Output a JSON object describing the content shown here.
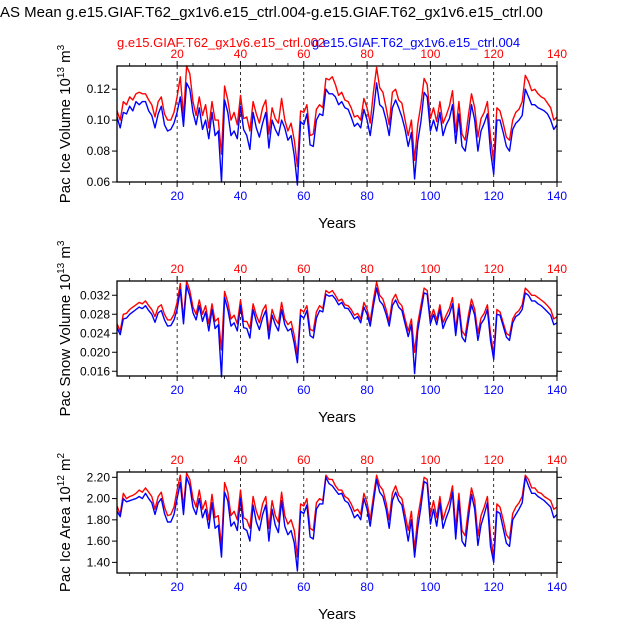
{
  "page_title": "AS Mean g.e15.GIAF.T62_gx1v6.e15_ctrl.004-g.e15.GIAF.T62_gx1v6.e15_ctrl.00",
  "legend": [
    {
      "label": "g.e15.GIAF.T62_gx1v6.e15_ctrl.002",
      "color": "#ff0000"
    },
    {
      "label": "g.e15.GIAF.T62_gx1v6.e15_ctrl.004",
      "color": "#0000ff"
    }
  ],
  "chart_data": [
    {
      "type": "line",
      "ylabel": "Pac Ice Volume 10",
      "ylabel_sup": "13",
      "ylabel_unit": "m",
      "ylabel_unit_sup": "3",
      "xlabel": "Years",
      "xlim": [
        1,
        140
      ],
      "ylim": [
        0.06,
        0.135
      ],
      "yticks": [
        0.06,
        0.08,
        0.1,
        0.12
      ],
      "ytick_labels": [
        "0.06",
        "0.08",
        "0.10",
        "0.12"
      ],
      "xticks_top": [
        "20",
        "40",
        "60",
        "80",
        "100",
        "120",
        "140"
      ],
      "xticks_bottom": [
        "20",
        "40",
        "60",
        "80",
        "100",
        "120",
        "140"
      ],
      "series": [
        {
          "name": "g.e15.GIAF.T62_gx1v6.e15_ctrl.002",
          "color": "#ff0000",
          "values": [
            0.106,
            0.1,
            0.112,
            0.11,
            0.115,
            0.113,
            0.117,
            0.118,
            0.117,
            0.117,
            0.113,
            0.11,
            0.102,
            0.112,
            0.115,
            0.104,
            0.1,
            0.1,
            0.105,
            0.115,
            0.128,
            0.102,
            0.135,
            0.13,
            0.112,
            0.103,
            0.115,
            0.103,
            0.11,
            0.095,
            0.112,
            0.1,
            0.1,
            0.078,
            0.122,
            0.113,
            0.1,
            0.105,
            0.097,
            0.116,
            0.101,
            0.102,
            0.093,
            0.112,
            0.104,
            0.098,
            0.108,
            0.113,
            0.091,
            0.108,
            0.101,
            0.098,
            0.114,
            0.1,
            0.093,
            0.098,
            0.087,
            0.07,
            0.106,
            0.105,
            0.11,
            0.09,
            0.091,
            0.107,
            0.11,
            0.108,
            0.127,
            0.126,
            0.128,
            0.123,
            0.116,
            0.118,
            0.113,
            0.112,
            0.108,
            0.102,
            0.103,
            0.1,
            0.114,
            0.108,
            0.098,
            0.118,
            0.134,
            0.121,
            0.118,
            0.108,
            0.097,
            0.118,
            0.12,
            0.113,
            0.111,
            0.1,
            0.09,
            0.1,
            0.074,
            0.097,
            0.11,
            0.127,
            0.123,
            0.101,
            0.108,
            0.099,
            0.112,
            0.098,
            0.103,
            0.109,
            0.119,
            0.092,
            0.112,
            0.091,
            0.087,
            0.103,
            0.117,
            0.108,
            0.089,
            0.101,
            0.105,
            0.112,
            0.089,
            0.073,
            0.108,
            0.106,
            0.098,
            0.089,
            0.087,
            0.1,
            0.105,
            0.107,
            0.112,
            0.129,
            0.125,
            0.119,
            0.12,
            0.117,
            0.115,
            0.114,
            0.111,
            0.108,
            0.1,
            0.102
          ]
        },
        {
          "name": "g.e15.GIAF.T62_gx1v6.e15_ctrl.004",
          "color": "#0000ff",
          "values": [
            0.102,
            0.095,
            0.105,
            0.104,
            0.109,
            0.106,
            0.112,
            0.11,
            0.112,
            0.112,
            0.106,
            0.103,
            0.095,
            0.104,
            0.109,
            0.097,
            0.093,
            0.094,
            0.098,
            0.105,
            0.115,
            0.096,
            0.124,
            0.12,
            0.105,
            0.097,
            0.108,
            0.094,
            0.1,
            0.088,
            0.105,
            0.09,
            0.093,
            0.06,
            0.113,
            0.105,
            0.09,
            0.093,
            0.088,
            0.109,
            0.094,
            0.09,
            0.081,
            0.105,
            0.095,
            0.089,
            0.098,
            0.105,
            0.082,
            0.1,
            0.094,
            0.09,
            0.1,
            0.095,
            0.087,
            0.09,
            0.077,
            0.058,
            0.099,
            0.097,
            0.104,
            0.084,
            0.083,
            0.1,
            0.104,
            0.103,
            0.12,
            0.117,
            0.117,
            0.115,
            0.11,
            0.112,
            0.108,
            0.107,
            0.102,
            0.096,
            0.098,
            0.095,
            0.107,
            0.1,
            0.09,
            0.105,
            0.124,
            0.11,
            0.108,
            0.1,
            0.09,
            0.108,
            0.113,
            0.108,
            0.102,
            0.094,
            0.083,
            0.092,
            0.062,
            0.086,
            0.099,
            0.118,
            0.115,
            0.093,
            0.1,
            0.093,
            0.105,
            0.09,
            0.097,
            0.101,
            0.11,
            0.085,
            0.104,
            0.083,
            0.08,
            0.094,
            0.11,
            0.1,
            0.08,
            0.093,
            0.098,
            0.104,
            0.08,
            0.065,
            0.1,
            0.1,
            0.092,
            0.083,
            0.08,
            0.094,
            0.098,
            0.1,
            0.103,
            0.12,
            0.115,
            0.11,
            0.11,
            0.108,
            0.107,
            0.106,
            0.104,
            0.1,
            0.094,
            0.097
          ]
        }
      ]
    },
    {
      "type": "line",
      "ylabel": "Pac Snow Volume 10",
      "ylabel_sup": "13",
      "ylabel_unit": "m",
      "ylabel_unit_sup": "3",
      "xlabel": "Years",
      "xlim": [
        1,
        140
      ],
      "ylim": [
        0.015,
        0.035
      ],
      "yticks": [
        0.016,
        0.02,
        0.024,
        0.028,
        0.032
      ],
      "ytick_labels": [
        "0.016",
        "0.020",
        "0.024",
        "0.028",
        "0.032"
      ],
      "xticks_top": [
        "20",
        "40",
        "60",
        "80",
        "100",
        "120",
        "140"
      ],
      "xticks_bottom": [
        "20",
        "40",
        "60",
        "80",
        "100",
        "120",
        "140"
      ],
      "series": [
        {
          "name": "g.e15.GIAF.T62_gx1v6.e15_ctrl.002",
          "color": "#ff0000",
          "values": [
            0.026,
            0.0245,
            0.028,
            0.0282,
            0.029,
            0.0295,
            0.03,
            0.0305,
            0.0302,
            0.0308,
            0.0298,
            0.029,
            0.0275,
            0.0295,
            0.03,
            0.028,
            0.0268,
            0.0268,
            0.028,
            0.0305,
            0.0345,
            0.027,
            0.035,
            0.033,
            0.0295,
            0.028,
            0.031,
            0.028,
            0.0298,
            0.026,
            0.0302,
            0.0265,
            0.0272,
            0.0205,
            0.0328,
            0.0305,
            0.027,
            0.0278,
            0.026,
            0.031,
            0.0265,
            0.0265,
            0.025,
            0.0302,
            0.0278,
            0.0262,
            0.0288,
            0.03,
            0.0245,
            0.029,
            0.027,
            0.026,
            0.0305,
            0.027,
            0.0258,
            0.0265,
            0.0235,
            0.0195,
            0.029,
            0.0285,
            0.0298,
            0.0248,
            0.0245,
            0.0285,
            0.0298,
            0.0292,
            0.033,
            0.0325,
            0.033,
            0.032,
            0.0308,
            0.0312,
            0.03,
            0.0298,
            0.029,
            0.0278,
            0.0282,
            0.027,
            0.0305,
            0.029,
            0.0265,
            0.031,
            0.0348,
            0.032,
            0.0312,
            0.029,
            0.0265,
            0.031,
            0.0322,
            0.0305,
            0.0298,
            0.027,
            0.0245,
            0.027,
            0.02,
            0.026,
            0.0298,
            0.0335,
            0.033,
            0.027,
            0.029,
            0.0268,
            0.03,
            0.0262,
            0.0278,
            0.0292,
            0.0315,
            0.0248,
            0.0302,
            0.0245,
            0.0235,
            0.0278,
            0.0312,
            0.029,
            0.024,
            0.0272,
            0.0282,
            0.03,
            0.024,
            0.0195,
            0.029,
            0.0285,
            0.0262,
            0.024,
            0.0235,
            0.027,
            0.0282,
            0.0288,
            0.03,
            0.0335,
            0.0328,
            0.032,
            0.032,
            0.0315,
            0.031,
            0.0305,
            0.0298,
            0.029,
            0.027,
            0.0275
          ]
        },
        {
          "name": "g.e15.GIAF.T62_gx1v6.e15_ctrl.004",
          "color": "#0000ff",
          "values": [
            0.0252,
            0.0237,
            0.027,
            0.0272,
            0.028,
            0.0285,
            0.029,
            0.0295,
            0.0292,
            0.0298,
            0.0288,
            0.028,
            0.0263,
            0.0283,
            0.0288,
            0.0268,
            0.0255,
            0.0256,
            0.0268,
            0.029,
            0.0332,
            0.026,
            0.034,
            0.0318,
            0.0283,
            0.0268,
            0.0298,
            0.0265,
            0.0285,
            0.0245,
            0.029,
            0.025,
            0.0258,
            0.0148,
            0.0315,
            0.029,
            0.0255,
            0.0262,
            0.0245,
            0.0298,
            0.0252,
            0.025,
            0.023,
            0.029,
            0.0265,
            0.0248,
            0.0272,
            0.0288,
            0.0228,
            0.0278,
            0.0258,
            0.0245,
            0.029,
            0.0258,
            0.0245,
            0.025,
            0.0218,
            0.0178,
            0.0278,
            0.0272,
            0.0288,
            0.0235,
            0.023,
            0.0272,
            0.0288,
            0.0285,
            0.0322,
            0.0318,
            0.032,
            0.0312,
            0.03,
            0.0305,
            0.0293,
            0.0292,
            0.0282,
            0.027,
            0.0275,
            0.0262,
            0.0295,
            0.028,
            0.0255,
            0.0298,
            0.0335,
            0.0308,
            0.03,
            0.028,
            0.0255,
            0.0298,
            0.031,
            0.0295,
            0.0288,
            0.026,
            0.0233,
            0.0258,
            0.0155,
            0.0245,
            0.0285,
            0.0325,
            0.0322,
            0.026,
            0.028,
            0.0258,
            0.029,
            0.025,
            0.0268,
            0.028,
            0.0302,
            0.0235,
            0.0292,
            0.0232,
            0.0222,
            0.0265,
            0.03,
            0.0278,
            0.0225,
            0.026,
            0.027,
            0.029,
            0.0225,
            0.0185,
            0.028,
            0.0278,
            0.0255,
            0.0232,
            0.0225,
            0.0262,
            0.0275,
            0.028,
            0.029,
            0.0325,
            0.032,
            0.0308,
            0.0308,
            0.0302,
            0.0298,
            0.0292,
            0.0285,
            0.0278,
            0.0258,
            0.0262
          ]
        }
      ]
    },
    {
      "type": "line",
      "ylabel": "Pac Ice Area 10",
      "ylabel_sup": "12",
      "ylabel_unit": "m",
      "ylabel_unit_sup": "2",
      "xlabel": "Years",
      "xlim": [
        1,
        140
      ],
      "ylim": [
        1.3,
        2.25
      ],
      "yticks": [
        1.4,
        1.6,
        1.8,
        2.0,
        2.2
      ],
      "ytick_labels": [
        "1.40",
        "1.60",
        "1.80",
        "2.00",
        "2.20"
      ],
      "xticks_top": [
        "20",
        "40",
        "60",
        "80",
        "100",
        "120",
        "140"
      ],
      "xticks_bottom": [
        "20",
        "40",
        "60",
        "80",
        "100",
        "120",
        "140"
      ],
      "series": [
        {
          "name": "g.e15.GIAF.T62_gx1v6.e15_ctrl.002",
          "color": "#ff0000",
          "values": [
            1.93,
            1.85,
            2.05,
            2.0,
            2.02,
            2.03,
            2.05,
            2.08,
            2.06,
            2.1,
            2.06,
            2.02,
            1.9,
            2.02,
            2.06,
            1.92,
            1.84,
            1.85,
            1.92,
            2.08,
            2.22,
            1.92,
            2.24,
            2.18,
            2.0,
            1.92,
            2.08,
            1.9,
            1.98,
            1.8,
            2.04,
            1.82,
            1.84,
            1.55,
            2.15,
            2.06,
            1.84,
            1.88,
            1.8,
            2.08,
            1.82,
            1.8,
            1.72,
            2.02,
            1.88,
            1.8,
            1.95,
            2.02,
            1.72,
            1.98,
            1.84,
            1.78,
            2.06,
            1.84,
            1.76,
            1.8,
            1.7,
            1.45,
            1.95,
            1.93,
            2.0,
            1.72,
            1.7,
            1.96,
            2.0,
            1.98,
            2.22,
            2.18,
            2.18,
            2.12,
            2.08,
            2.08,
            2.02,
            2.0,
            1.95,
            1.88,
            1.9,
            1.85,
            2.05,
            1.96,
            1.8,
            2.02,
            2.22,
            2.12,
            2.08,
            1.96,
            1.8,
            2.05,
            2.12,
            2.03,
            2.0,
            1.85,
            1.7,
            1.88,
            1.52,
            1.82,
            2.0,
            2.2,
            2.18,
            1.84,
            1.98,
            1.82,
            2.02,
            1.8,
            1.9,
            1.98,
            2.12,
            1.72,
            2.05,
            1.7,
            1.65,
            1.9,
            2.1,
            1.98,
            1.65,
            1.84,
            1.92,
            2.02,
            1.65,
            1.45,
            1.95,
            1.92,
            1.8,
            1.66,
            1.62,
            1.86,
            1.92,
            1.96,
            2.02,
            2.22,
            2.18,
            2.1,
            2.1,
            2.06,
            2.05,
            2.02,
            2.0,
            1.98,
            1.9,
            1.92
          ]
        },
        {
          "name": "g.e15.GIAF.T62_gx1v6.e15_ctrl.004",
          "color": "#0000ff",
          "values": [
            1.88,
            1.83,
            2.0,
            1.97,
            1.98,
            1.99,
            2.0,
            2.02,
            2.0,
            2.05,
            2.0,
            1.96,
            1.85,
            1.96,
            2.0,
            1.86,
            1.78,
            1.78,
            1.85,
            2.0,
            2.15,
            1.85,
            2.2,
            2.12,
            1.92,
            1.85,
            2.0,
            1.82,
            1.9,
            1.72,
            1.96,
            1.72,
            1.75,
            1.45,
            2.06,
            1.98,
            1.74,
            1.78,
            1.7,
            2.0,
            1.72,
            1.7,
            1.6,
            1.94,
            1.78,
            1.7,
            1.85,
            1.94,
            1.6,
            1.9,
            1.75,
            1.68,
            1.98,
            1.74,
            1.66,
            1.7,
            1.58,
            1.32,
            1.88,
            1.86,
            1.94,
            1.64,
            1.62,
            1.9,
            1.95,
            1.95,
            2.2,
            2.14,
            2.12,
            2.08,
            2.04,
            2.05,
            1.98,
            1.96,
            1.9,
            1.82,
            1.85,
            1.8,
            2.0,
            1.9,
            1.74,
            1.96,
            2.18,
            2.06,
            2.02,
            1.9,
            1.72,
            1.98,
            2.06,
            1.98,
            1.94,
            1.78,
            1.6,
            1.8,
            1.45,
            1.72,
            1.92,
            2.16,
            2.14,
            1.76,
            1.9,
            1.74,
            1.96,
            1.72,
            1.82,
            1.9,
            2.06,
            1.62,
            1.98,
            1.6,
            1.55,
            1.82,
            2.04,
            1.9,
            1.56,
            1.75,
            1.85,
            1.96,
            1.55,
            1.4,
            1.88,
            1.86,
            1.72,
            1.58,
            1.55,
            1.8,
            1.85,
            1.9,
            1.96,
            2.2,
            2.12,
            2.05,
            2.05,
            2.02,
            2.0,
            1.98,
            1.95,
            1.92,
            1.82,
            1.85
          ]
        }
      ]
    }
  ]
}
